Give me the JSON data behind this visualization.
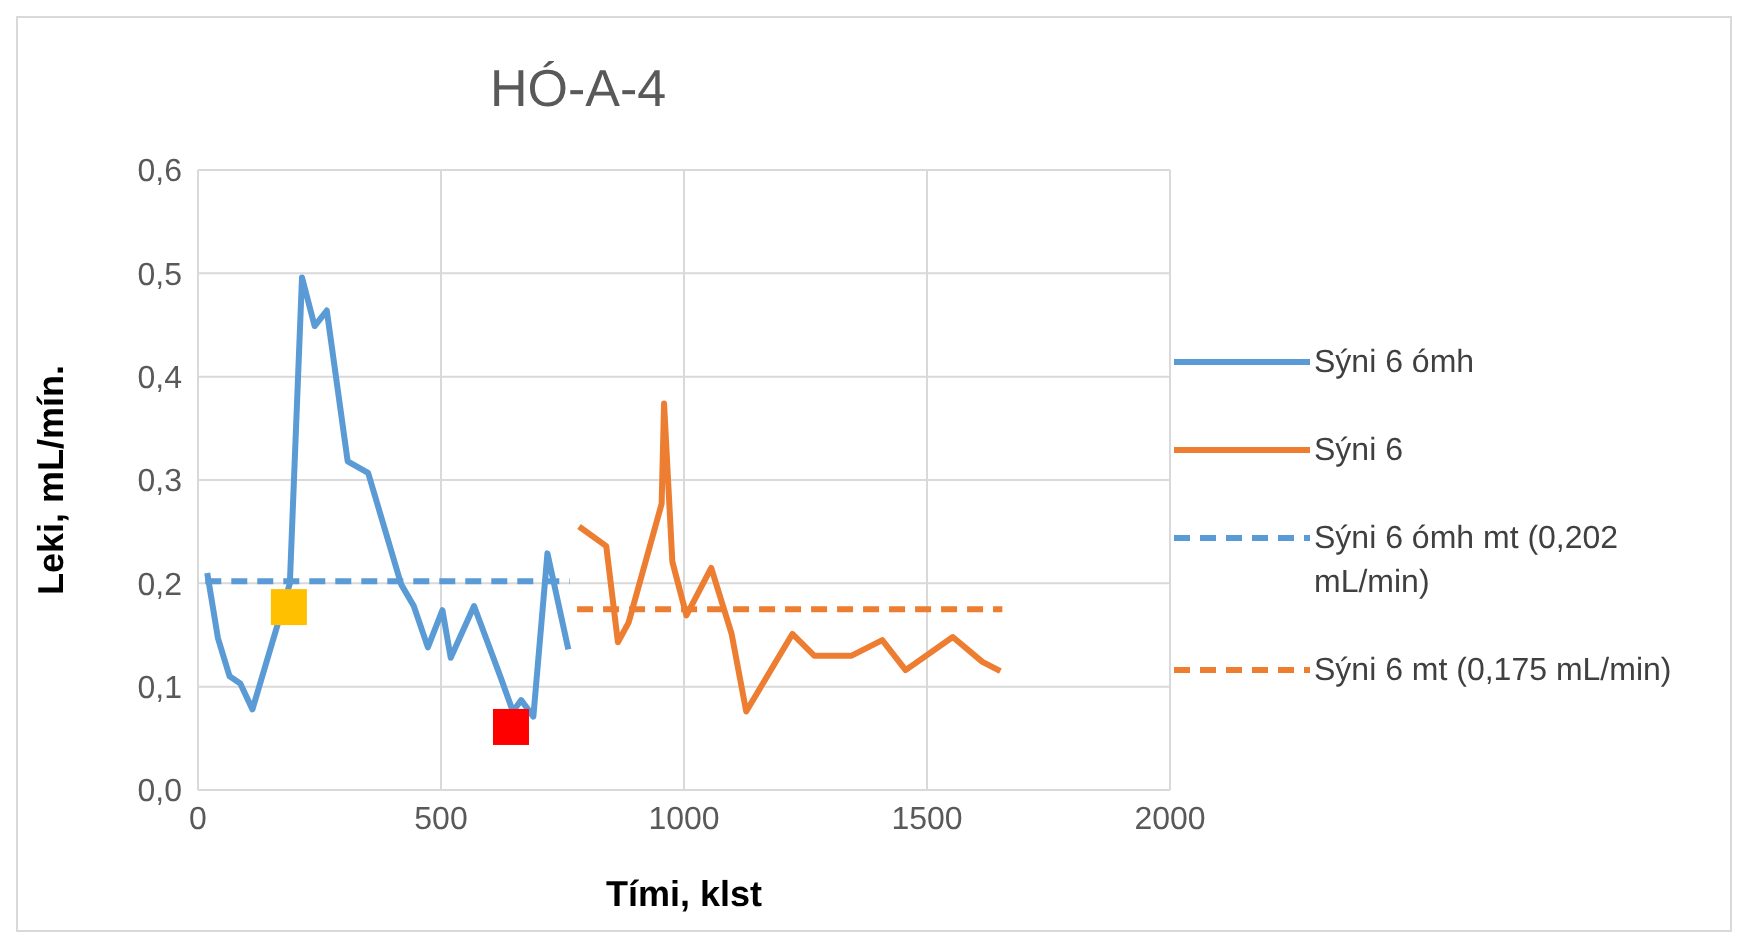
{
  "chart_data": {
    "type": "line",
    "title": "HÓ-A-4",
    "xlabel": "Tími, klst",
    "ylabel": "Leki, mL/mín.",
    "xlim": [
      0,
      2000
    ],
    "xticks": [
      0,
      500,
      1000,
      1500,
      2000
    ],
    "ylim": [
      0,
      0.6
    ],
    "yticks": [
      {
        "value": 0,
        "label": "0,0"
      },
      {
        "value": 0.1,
        "label": "0,1"
      },
      {
        "value": 0.2,
        "label": "0,2"
      },
      {
        "value": 0.3,
        "label": "0,3"
      },
      {
        "value": 0.4,
        "label": "0,4"
      },
      {
        "value": 0.5,
        "label": "0,5"
      },
      {
        "value": 0.6,
        "label": "0,6"
      }
    ],
    "grid": true,
    "legend": "right",
    "marker": "none",
    "series": [
      {
        "name": "Sýni 6 ómh",
        "color": "#5b9bd5",
        "line_style": "solid",
        "x": [
          19,
          41,
          65,
          87,
          112,
          189,
          214,
          240,
          265,
          308,
          350,
          418,
          444,
          473,
          503,
          520,
          568,
          622,
          648,
          665,
          690,
          719,
          762
        ],
        "values": [
          0.21,
          0.147,
          0.11,
          0.103,
          0.078,
          0.2,
          0.496,
          0.449,
          0.464,
          0.318,
          0.307,
          0.199,
          0.178,
          0.138,
          0.174,
          0.128,
          0.178,
          0.11,
          0.076,
          0.087,
          0.071,
          0.229,
          0.136
        ]
      },
      {
        "name": "Sýni 6",
        "color": "#ed7d31",
        "line_style": "solid",
        "x": [
          784,
          840,
          864,
          886,
          954,
          959,
          976,
          1005,
          1056,
          1098,
          1128,
          1223,
          1268,
          1345,
          1408,
          1456,
          1553,
          1614,
          1651
        ],
        "values": [
          0.255,
          0.236,
          0.143,
          0.162,
          0.277,
          0.374,
          0.221,
          0.169,
          0.215,
          0.151,
          0.076,
          0.151,
          0.13,
          0.13,
          0.145,
          0.116,
          0.148,
          0.124,
          0.115
        ]
      },
      {
        "name": "Sýni 6 ómh mt (0,202 mL/min)",
        "color": "#5b9bd5",
        "line_style": "dashed",
        "x": [
          15,
          765
        ],
        "values": [
          0.202,
          0.202
        ]
      },
      {
        "name": "Sýni 6 mt (0,175 mL/min)",
        "color": "#ed7d31",
        "line_style": "dashed",
        "x": [
          780,
          1655
        ],
        "values": [
          0.175,
          0.175
        ]
      },
      {
        "type": "scatter",
        "marker": "square",
        "color": "#ffc000",
        "x": [
          187
        ],
        "values": [
          0.177
        ]
      },
      {
        "type": "scatter",
        "marker": "square",
        "color": "#ff0000",
        "x": [
          644
        ],
        "values": [
          0.061
        ]
      }
    ]
  }
}
